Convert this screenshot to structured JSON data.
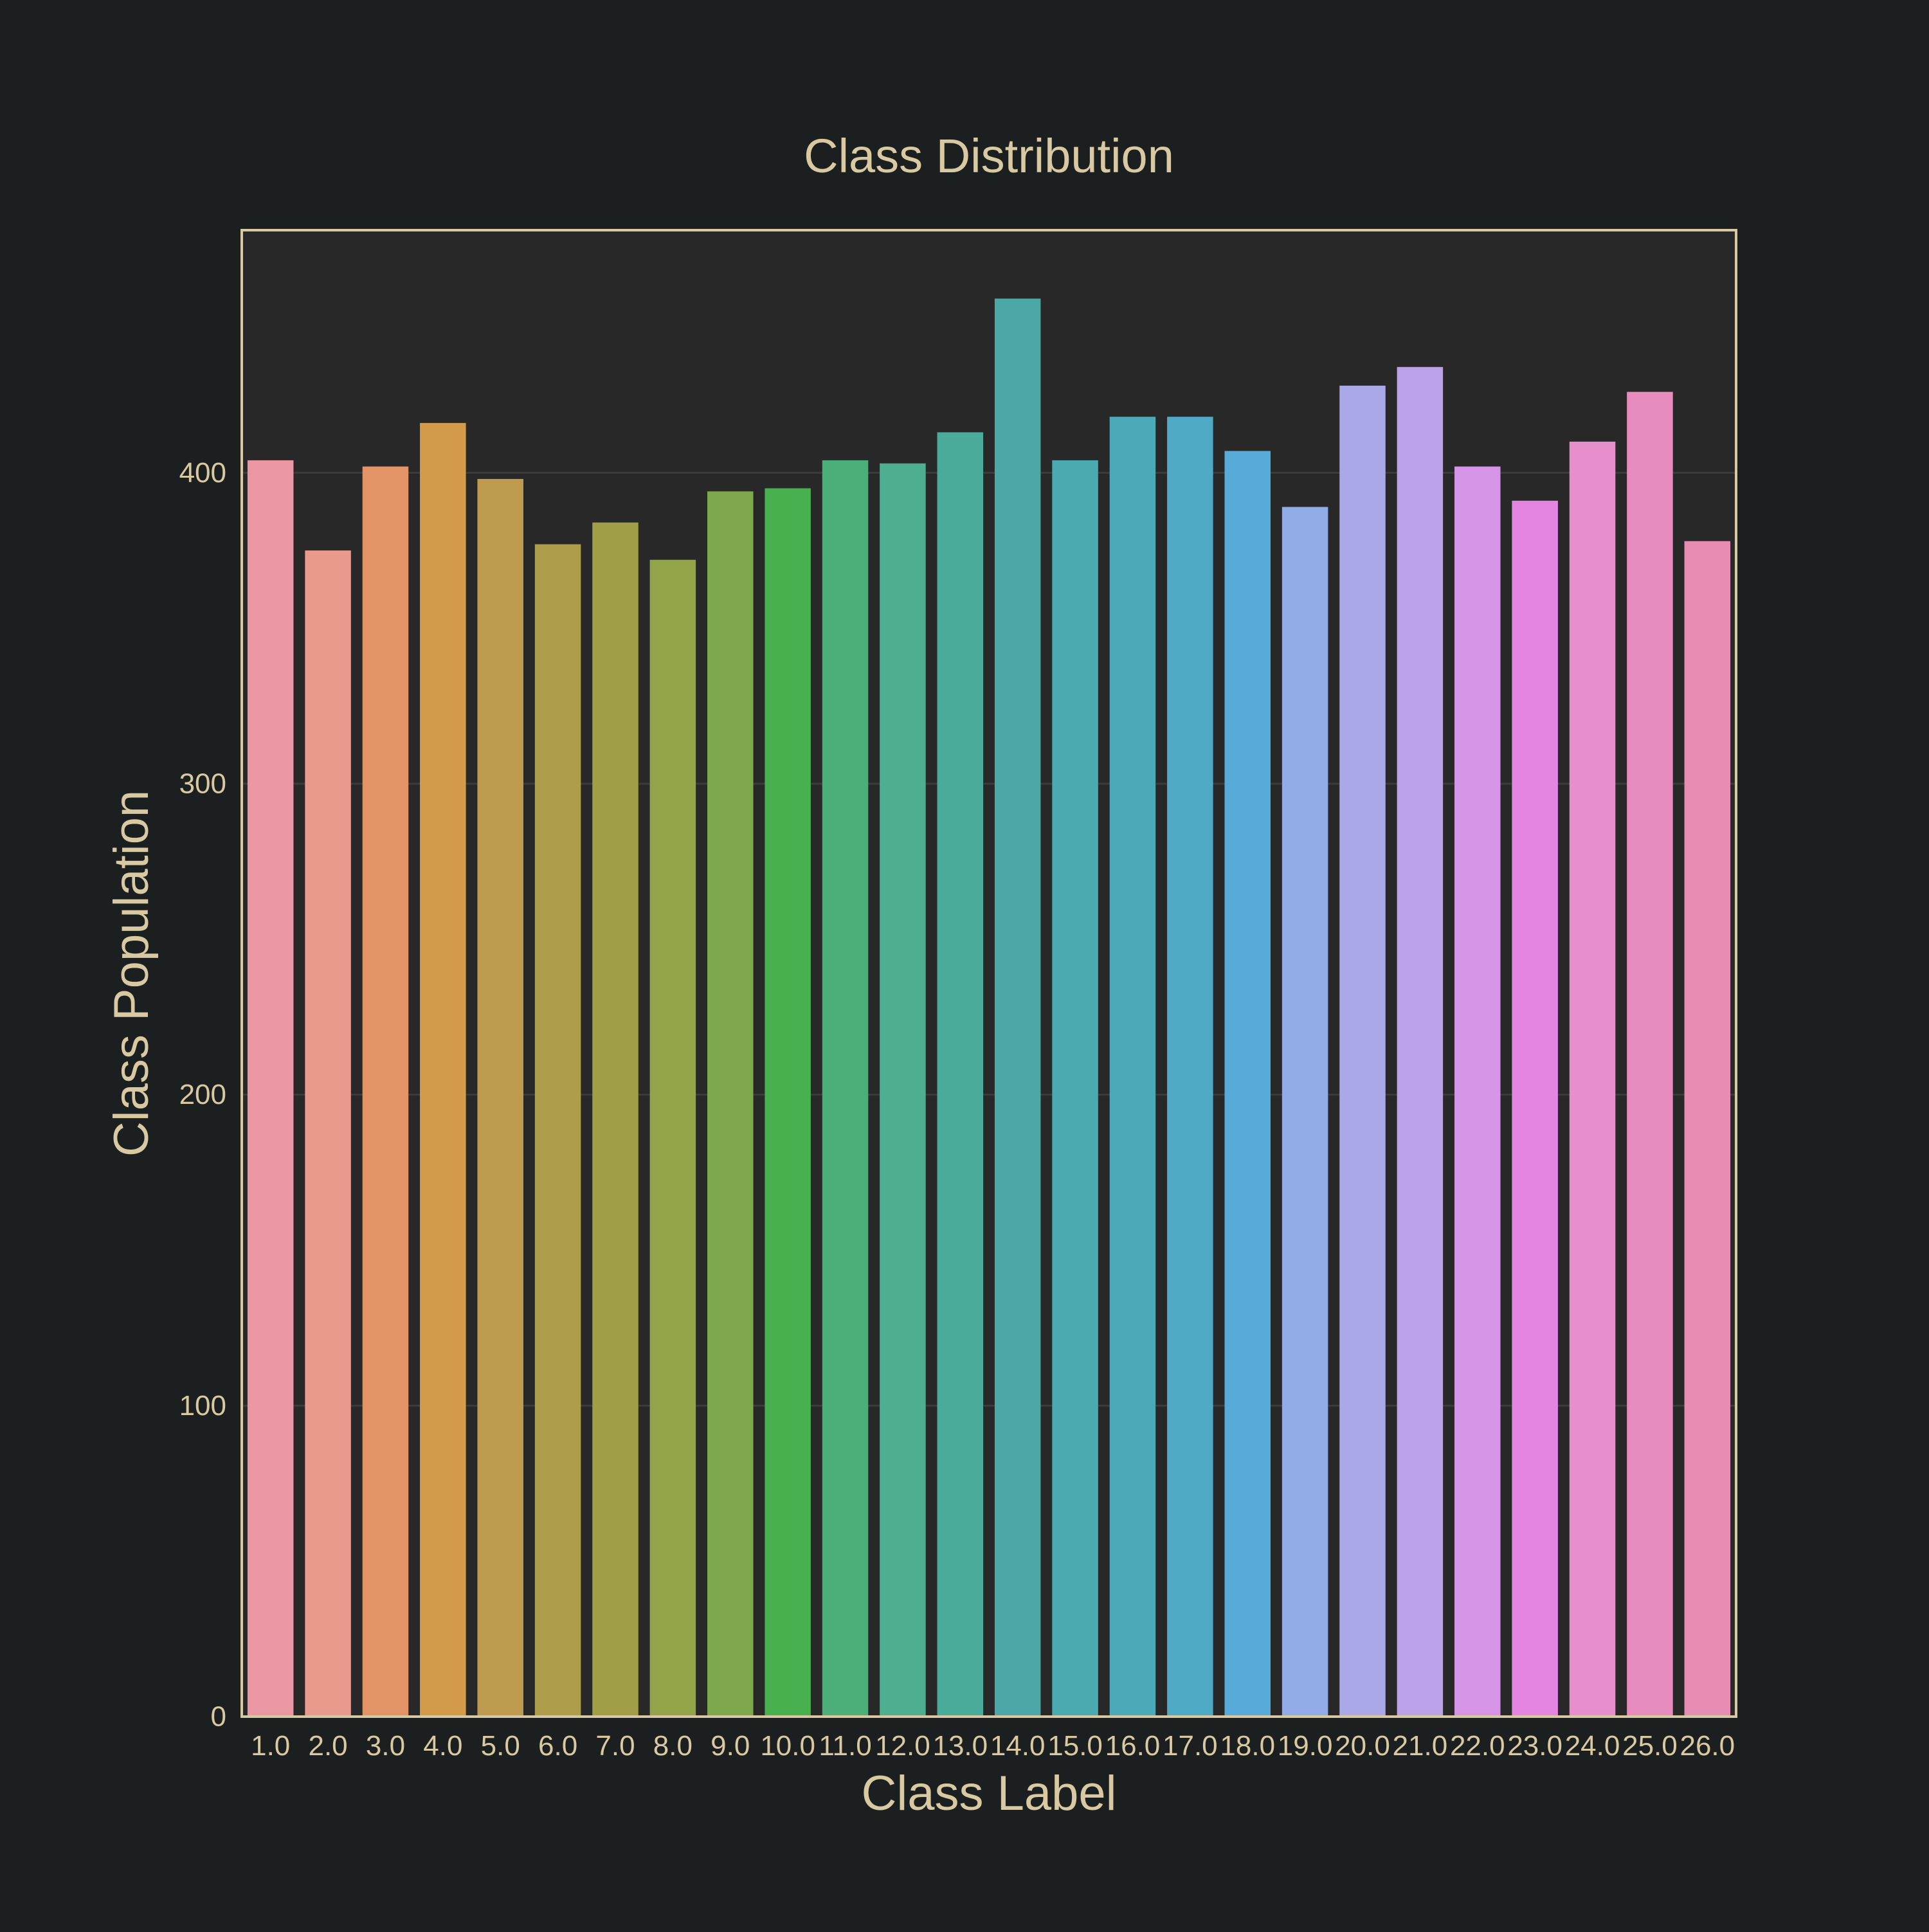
{
  "chart_data": {
    "type": "bar",
    "title": "Class Distribution",
    "xlabel": "Class Label",
    "ylabel": "Class Population",
    "categories": [
      "1.0",
      "2.0",
      "3.0",
      "4.0",
      "5.0",
      "6.0",
      "7.0",
      "8.0",
      "9.0",
      "10.0",
      "11.0",
      "12.0",
      "13.0",
      "14.0",
      "15.0",
      "16.0",
      "17.0",
      "18.0",
      "19.0",
      "20.0",
      "21.0",
      "22.0",
      "23.0",
      "24.0",
      "25.0",
      "26.0"
    ],
    "values": [
      404,
      375,
      402,
      416,
      398,
      377,
      384,
      372,
      394,
      395,
      404,
      403,
      413,
      456,
      404,
      418,
      418,
      407,
      389,
      428,
      434,
      402,
      391,
      410,
      426,
      378
    ],
    "colors": [
      "#ea96a3",
      "#e99a8c",
      "#e39467",
      "#d39b4a",
      "#bf9b4f",
      "#ae9d4a",
      "#a09f47",
      "#92a447",
      "#7ea84b",
      "#48b04f",
      "#4caf79",
      "#4daf8f",
      "#4aab9b",
      "#4ca8a6",
      "#4aaab0",
      "#4ca9b8",
      "#4faac5",
      "#58abd9",
      "#91abe7",
      "#aaa8e6",
      "#bba2ea",
      "#d594e5",
      "#e585e2",
      "#e78ecd",
      "#e68dbe",
      "#e78db4"
    ],
    "ylim": [
      0,
      478
    ],
    "yticks": [
      0,
      100,
      200,
      300,
      400
    ],
    "grid": true,
    "style": {
      "background": "#1c1f20",
      "plot_background": "#282828",
      "frame_color": "#d8c9a3",
      "text_color": "#d8c9a3",
      "grid_color": "#3b3b3b"
    }
  }
}
